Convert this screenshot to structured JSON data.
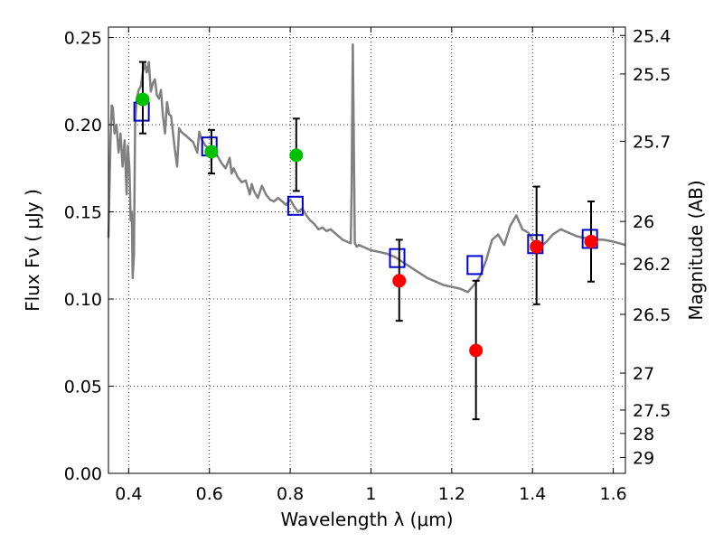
{
  "chart_data": {
    "type": "scatter",
    "xlabel": "Wavelength  λ (μm)",
    "ylabel": "Flux  Fν  ( μJy )",
    "y2label": "Magnitude (AB)",
    "xlim": [
      0.35,
      1.63
    ],
    "ylim": [
      0.0,
      0.256
    ],
    "grid": true,
    "x_ticks": [
      {
        "value": 0.4,
        "label": "0.4"
      },
      {
        "value": 0.6,
        "label": "0.6"
      },
      {
        "value": 0.8,
        "label": "0.8"
      },
      {
        "value": 1.0,
        "label": "1"
      },
      {
        "value": 1.2,
        "label": "1.2"
      },
      {
        "value": 1.4,
        "label": "1.4"
      },
      {
        "value": 1.6,
        "label": "1.6"
      }
    ],
    "y_ticks": [
      {
        "value": 0.0,
        "label": "0.00"
      },
      {
        "value": 0.05,
        "label": "0.05"
      },
      {
        "value": 0.1,
        "label": "0.10"
      },
      {
        "value": 0.15,
        "label": "0.15"
      },
      {
        "value": 0.2,
        "label": "0.20"
      },
      {
        "value": 0.25,
        "label": "0.25"
      }
    ],
    "mag_ticks": [
      {
        "flux": 0.2512,
        "label": "25.4"
      },
      {
        "flux": 0.2291,
        "label": "25.5"
      },
      {
        "flux": 0.1905,
        "label": "25.7"
      },
      {
        "flux": 0.1445,
        "label": "26"
      },
      {
        "flux": 0.1202,
        "label": "26.2"
      },
      {
        "flux": 0.0912,
        "label": "26.5"
      },
      {
        "flux": 0.0575,
        "label": "27"
      },
      {
        "flux": 0.0363,
        "label": "27.5"
      },
      {
        "flux": 0.0229,
        "label": "28"
      },
      {
        "flux": 0.0091,
        "label": "29"
      }
    ],
    "series": [
      {
        "name": "model spectrum",
        "kind": "line",
        "color": "#808080",
        "points": [
          [
            0.35,
            0.135
          ],
          [
            0.355,
            0.19
          ],
          [
            0.358,
            0.211
          ],
          [
            0.361,
            0.21
          ],
          [
            0.365,
            0.195
          ],
          [
            0.37,
            0.2
          ],
          [
            0.375,
            0.184
          ],
          [
            0.38,
            0.195
          ],
          [
            0.385,
            0.176
          ],
          [
            0.39,
            0.191
          ],
          [
            0.395,
            0.16
          ],
          [
            0.398,
            0.188
          ],
          [
            0.402,
            0.175
          ],
          [
            0.405,
            0.145
          ],
          [
            0.408,
            0.15
          ],
          [
            0.41,
            0.112
          ],
          [
            0.413,
            0.125
          ],
          [
            0.416,
            0.2
          ],
          [
            0.42,
            0.215
          ],
          [
            0.425,
            0.22
          ],
          [
            0.43,
            0.222
          ],
          [
            0.435,
            0.23
          ],
          [
            0.44,
            0.235
          ],
          [
            0.445,
            0.23
          ],
          [
            0.45,
            0.236
          ],
          [
            0.455,
            0.219
          ],
          [
            0.46,
            0.224
          ],
          [
            0.465,
            0.226
          ],
          [
            0.47,
            0.217
          ],
          [
            0.475,
            0.215
          ],
          [
            0.48,
            0.22
          ],
          [
            0.485,
            0.205
          ],
          [
            0.49,
            0.195
          ],
          [
            0.495,
            0.213
          ],
          [
            0.5,
            0.206
          ],
          [
            0.505,
            0.205
          ],
          [
            0.51,
            0.195
          ],
          [
            0.515,
            0.185
          ],
          [
            0.52,
            0.176
          ],
          [
            0.525,
            0.198
          ],
          [
            0.53,
            0.196
          ],
          [
            0.54,
            0.194
          ],
          [
            0.55,
            0.192
          ],
          [
            0.56,
            0.19
          ],
          [
            0.57,
            0.184
          ],
          [
            0.575,
            0.196
          ],
          [
            0.58,
            0.192
          ],
          [
            0.59,
            0.188
          ],
          [
            0.6,
            0.186
          ],
          [
            0.605,
            0.18
          ],
          [
            0.61,
            0.185
          ],
          [
            0.62,
            0.182
          ],
          [
            0.63,
            0.178
          ],
          [
            0.64,
            0.175
          ],
          [
            0.65,
            0.181
          ],
          [
            0.655,
            0.172
          ],
          [
            0.66,
            0.175
          ],
          [
            0.67,
            0.17
          ],
          [
            0.68,
            0.167
          ],
          [
            0.69,
            0.168
          ],
          [
            0.7,
            0.16
          ],
          [
            0.705,
            0.166
          ],
          [
            0.71,
            0.162
          ],
          [
            0.72,
            0.158
          ],
          [
            0.73,
            0.165
          ],
          [
            0.74,
            0.16
          ],
          [
            0.75,
            0.157
          ],
          [
            0.76,
            0.156
          ],
          [
            0.77,
            0.158
          ],
          [
            0.78,
            0.156
          ],
          [
            0.79,
            0.154
          ],
          [
            0.8,
            0.157
          ],
          [
            0.81,
            0.153
          ],
          [
            0.82,
            0.15
          ],
          [
            0.83,
            0.152
          ],
          [
            0.84,
            0.148
          ],
          [
            0.85,
            0.145
          ],
          [
            0.86,
            0.143
          ],
          [
            0.87,
            0.14
          ],
          [
            0.88,
            0.141
          ],
          [
            0.89,
            0.139
          ],
          [
            0.9,
            0.14
          ],
          [
            0.91,
            0.138
          ],
          [
            0.92,
            0.136
          ],
          [
            0.93,
            0.134
          ],
          [
            0.94,
            0.133
          ],
          [
            0.95,
            0.132
          ],
          [
            0.952,
            0.16
          ],
          [
            0.955,
            0.246
          ],
          [
            0.957,
            0.2
          ],
          [
            0.96,
            0.132
          ],
          [
            0.965,
            0.13
          ],
          [
            0.97,
            0.131
          ],
          [
            0.98,
            0.13
          ],
          [
            0.99,
            0.129
          ],
          [
            1.0,
            0.128
          ],
          [
            1.02,
            0.127
          ],
          [
            1.04,
            0.126
          ],
          [
            1.06,
            0.124
          ],
          [
            1.08,
            0.121
          ],
          [
            1.1,
            0.118
          ],
          [
            1.12,
            0.115
          ],
          [
            1.14,
            0.112
          ],
          [
            1.16,
            0.11
          ],
          [
            1.18,
            0.108
          ],
          [
            1.2,
            0.107
          ],
          [
            1.22,
            0.106
          ],
          [
            1.24,
            0.104
          ],
          [
            1.255,
            0.108
          ],
          [
            1.27,
            0.113
          ],
          [
            1.285,
            0.122
          ],
          [
            1.3,
            0.134
          ],
          [
            1.315,
            0.137
          ],
          [
            1.33,
            0.131
          ],
          [
            1.345,
            0.142
          ],
          [
            1.36,
            0.148
          ],
          [
            1.375,
            0.14
          ],
          [
            1.39,
            0.138
          ],
          [
            1.405,
            0.132
          ],
          [
            1.42,
            0.13
          ],
          [
            1.435,
            0.133
          ],
          [
            1.45,
            0.137
          ],
          [
            1.47,
            0.14
          ],
          [
            1.49,
            0.138
          ],
          [
            1.51,
            0.136
          ],
          [
            1.53,
            0.135
          ],
          [
            1.55,
            0.134
          ],
          [
            1.575,
            0.134
          ],
          [
            1.6,
            0.133
          ],
          [
            1.63,
            0.131
          ]
        ]
      },
      {
        "name": "green points",
        "kind": "points",
        "color": "#00c000",
        "points": [
          {
            "x": 0.435,
            "y": 0.2145,
            "lo": 0.195,
            "hi": 0.236
          },
          {
            "x": 0.605,
            "y": 0.1845,
            "lo": 0.172,
            "hi": 0.197
          },
          {
            "x": 0.815,
            "y": 0.1825,
            "lo": 0.162,
            "hi": 0.2035
          }
        ]
      },
      {
        "name": "red points",
        "kind": "points",
        "color": "#ff0000",
        "points": [
          {
            "x": 1.07,
            "y": 0.1105,
            "lo": 0.0875,
            "hi": 0.134
          },
          {
            "x": 1.26,
            "y": 0.0705,
            "lo": 0.031,
            "hi": 0.1105
          },
          {
            "x": 1.41,
            "y": 0.13,
            "lo": 0.097,
            "hi": 0.1645
          },
          {
            "x": 1.545,
            "y": 0.133,
            "lo": 0.11,
            "hi": 0.156
          }
        ]
      },
      {
        "name": "blue squares",
        "kind": "squares",
        "color": "#0000cc",
        "points": [
          {
            "x": 0.432,
            "y": 0.2075
          },
          {
            "x": 0.6,
            "y": 0.1875
          },
          {
            "x": 0.813,
            "y": 0.1535
          },
          {
            "x": 1.065,
            "y": 0.1235
          },
          {
            "x": 1.257,
            "y": 0.1195
          },
          {
            "x": 1.407,
            "y": 0.1315
          },
          {
            "x": 1.542,
            "y": 0.1345
          }
        ]
      }
    ]
  }
}
